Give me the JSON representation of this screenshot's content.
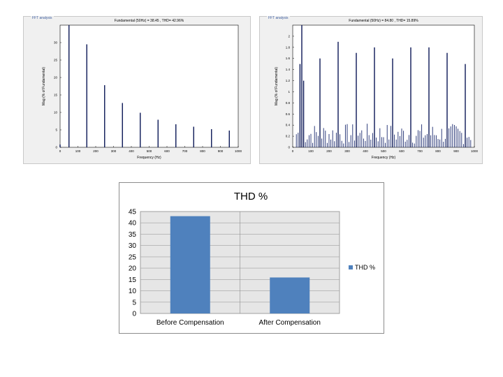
{
  "panels": {
    "left_title": "FFT analysis",
    "right_title": "FFT analysis"
  },
  "chart_data": [
    {
      "type": "bar",
      "title": "Fundamental (50Hz) = 38.45 , THD= 42.96%",
      "xlabel": "Frequency (Hz)",
      "ylabel": "Mag (% of Fundamental)",
      "xlim": [
        0,
        1000
      ],
      "ylim": [
        0,
        35
      ],
      "xticks": [
        0,
        100,
        200,
        300,
        400,
        500,
        600,
        700,
        800,
        900,
        1000
      ],
      "yticks": [
        0,
        5,
        10,
        15,
        20,
        25,
        30
      ],
      "x": [
        0,
        50,
        150,
        250,
        350,
        450,
        550,
        650,
        750,
        850,
        950
      ],
      "values": [
        0.8,
        35,
        29.5,
        17.8,
        12.7,
        9.9,
        7.9,
        6.6,
        5.9,
        5.2,
        4.8
      ]
    },
    {
      "type": "bar",
      "title": "Fundamental (50Hz) = 84.80 , THD= 15.89%",
      "xlabel": "Frequency (Hz)",
      "ylabel": "Mag (% of Fundamental)",
      "xlim": [
        0,
        1000
      ],
      "ylim": [
        0,
        2.2
      ],
      "xticks": [
        0,
        100,
        200,
        300,
        400,
        500,
        600,
        700,
        800,
        900,
        1000
      ],
      "yticks": [
        0,
        0.2,
        0.4,
        0.6,
        0.8,
        1,
        1.2,
        1.4,
        1.6,
        1.8,
        2
      ],
      "major_x": [
        40,
        50,
        60,
        150,
        250,
        350,
        450,
        550,
        650,
        750,
        850,
        950
      ],
      "major_values": [
        1.5,
        2.2,
        1.2,
        1.6,
        1.9,
        1.7,
        1.8,
        1.6,
        1.8,
        1.8,
        1.7,
        1.5
      ]
    },
    {
      "type": "bar",
      "title": "THD %",
      "categories": [
        "Before Compensation",
        "After Compensation"
      ],
      "series": [
        {
          "name": "THD %",
          "values": [
            42.96,
            15.89
          ]
        }
      ],
      "ylim": [
        0,
        45
      ],
      "yticks": [
        0,
        5,
        10,
        15,
        20,
        25,
        30,
        35,
        40,
        45
      ],
      "legend": "right",
      "color": "#4f81bd"
    }
  ]
}
